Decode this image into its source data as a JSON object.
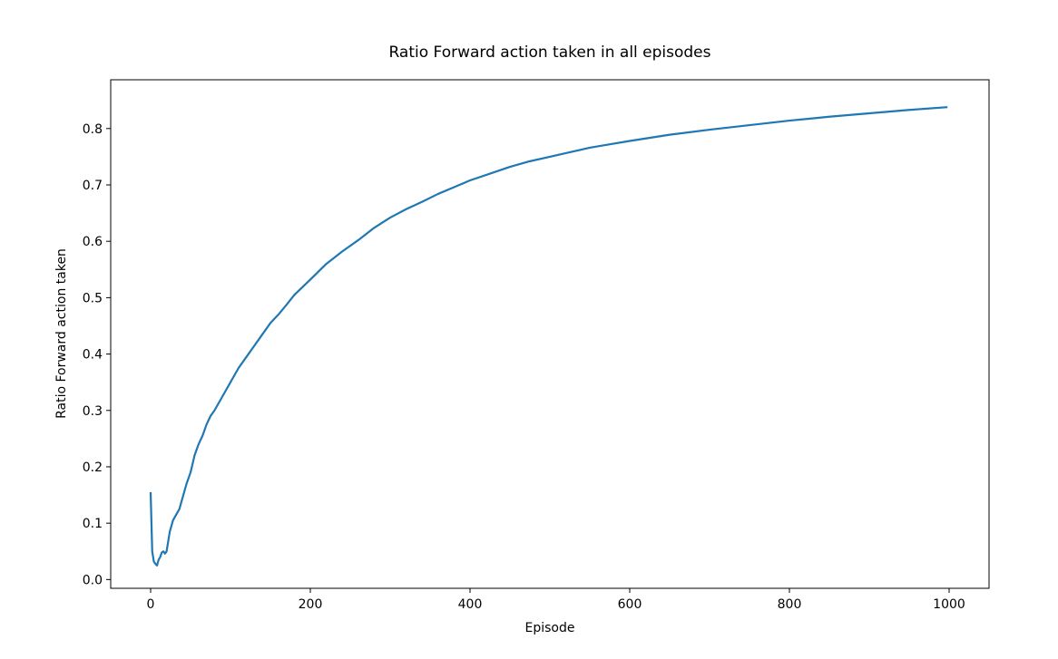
{
  "chart_data": {
    "type": "line",
    "title": "Ratio Forward action taken in all episodes",
    "xlabel": "Episode",
    "ylabel": "Ratio Forward action taken",
    "xlim": [
      -50,
      1050
    ],
    "ylim": [
      -0.0155,
      0.8865
    ],
    "xticks": [
      0,
      200,
      400,
      600,
      800,
      1000
    ],
    "yticks": [
      0.0,
      0.1,
      0.2,
      0.3,
      0.4,
      0.5,
      0.6,
      0.7,
      0.8
    ],
    "xtick_labels": [
      "0",
      "200",
      "400",
      "600",
      "800",
      "1000"
    ],
    "ytick_labels": [
      "0.0",
      "0.1",
      "0.2",
      "0.3",
      "0.4",
      "0.5",
      "0.6",
      "0.7",
      "0.8"
    ],
    "grid": false,
    "legend": "none",
    "colors": {
      "line": "#1f77b4"
    },
    "series": [
      {
        "x": [
          0,
          2,
          4,
          6,
          8,
          10,
          12,
          14,
          16,
          18,
          20,
          24,
          28,
          32,
          36,
          40,
          45,
          50,
          55,
          60,
          65,
          70,
          75,
          80,
          90,
          100,
          110,
          120,
          130,
          140,
          150,
          160,
          170,
          180,
          200,
          220,
          240,
          260,
          280,
          300,
          320,
          340,
          360,
          380,
          400,
          425,
          450,
          475,
          500,
          525,
          550,
          575,
          600,
          650,
          700,
          750,
          800,
          850,
          900,
          950,
          998
        ],
        "y": [
          0.155,
          0.05,
          0.032,
          0.028,
          0.025,
          0.035,
          0.04,
          0.048,
          0.05,
          0.046,
          0.05,
          0.085,
          0.105,
          0.115,
          0.125,
          0.145,
          0.17,
          0.19,
          0.22,
          0.24,
          0.255,
          0.275,
          0.29,
          0.3,
          0.325,
          0.35,
          0.375,
          0.395,
          0.415,
          0.435,
          0.455,
          0.47,
          0.487,
          0.505,
          0.532,
          0.56,
          0.582,
          0.602,
          0.624,
          0.642,
          0.657,
          0.67,
          0.684,
          0.696,
          0.708,
          0.72,
          0.732,
          0.742,
          0.75,
          0.758,
          0.766,
          0.772,
          0.778,
          0.789,
          0.798,
          0.806,
          0.814,
          0.821,
          0.827,
          0.833,
          0.838
        ]
      }
    ]
  }
}
